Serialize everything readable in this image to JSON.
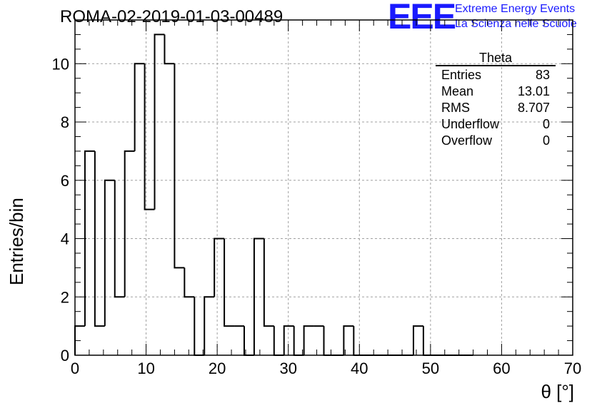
{
  "header": {
    "title": "ROMA-02-2019-01-03-00489",
    "logo_text": "EEE",
    "logo_line1": "Extreme Energy Events",
    "logo_line2": "La Scienza nelle Scuole"
  },
  "stats_box": {
    "title": "Theta",
    "rows": [
      {
        "label": "Entries",
        "value": "83"
      },
      {
        "label": "Mean",
        "value": "13.01"
      },
      {
        "label": "RMS",
        "value": "8.707"
      },
      {
        "label": "Underflow",
        "value": "0"
      },
      {
        "label": "Overflow",
        "value": "0"
      }
    ]
  },
  "colors": {
    "logo": "#1a1aff",
    "line": "#000000",
    "grid": "#a0a0a0"
  },
  "chart_data": {
    "type": "bar",
    "style": "step-histogram",
    "title": "ROMA-02-2019-01-03-00489",
    "xlabel": "θ [°]",
    "ylabel": "Entries/bin",
    "xlim": [
      0,
      70
    ],
    "ylim": [
      0,
      11.5
    ],
    "grid": true,
    "bin_width": 1.4,
    "bin_edges_start": 0,
    "values": [
      1,
      7,
      1,
      6,
      2,
      7,
      10,
      5,
      11,
      10,
      3,
      2,
      0,
      2,
      4,
      1,
      1,
      0,
      4,
      1,
      0,
      1,
      0,
      1,
      1,
      0,
      0,
      1,
      0,
      0,
      0,
      0,
      0,
      0,
      1,
      0,
      0,
      0,
      0,
      0
    ],
    "x_ticks": [
      0,
      10,
      20,
      30,
      40,
      50,
      60,
      70
    ],
    "y_ticks": [
      0,
      2,
      4,
      6,
      8,
      10
    ],
    "x_tick_labels": [
      "0",
      "10",
      "20",
      "30",
      "40",
      "50",
      "60",
      "70"
    ],
    "y_tick_labels": [
      "0",
      "2",
      "4",
      "6",
      "8",
      "10"
    ]
  }
}
